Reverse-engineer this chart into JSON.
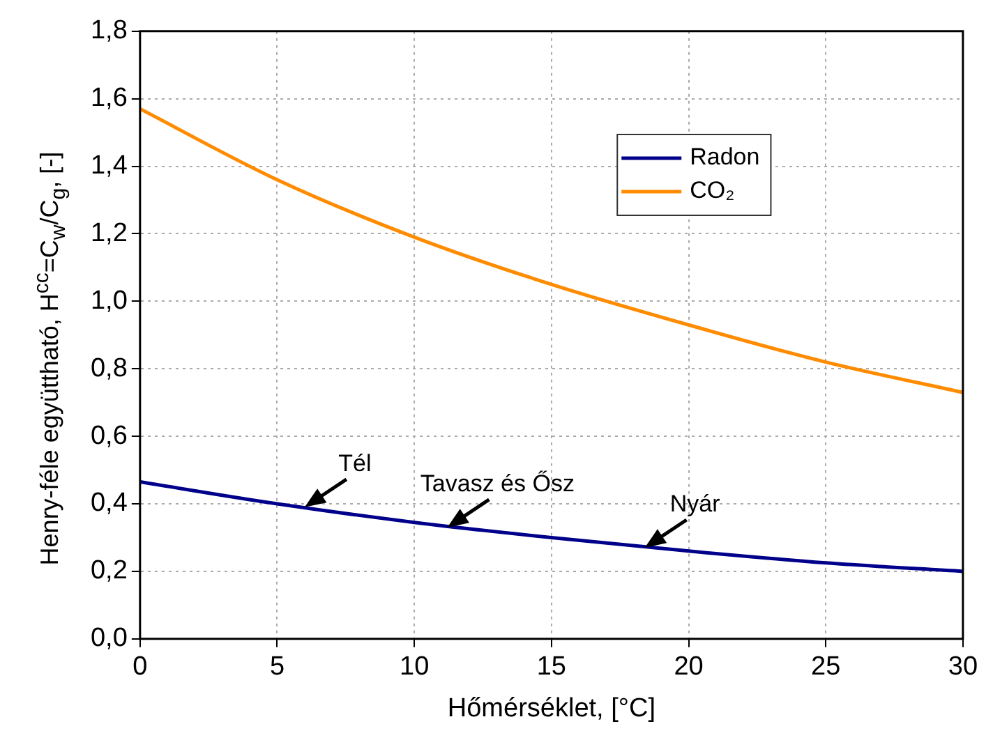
{
  "chart_data": {
    "type": "line",
    "xlabel": "Hőmérséklet, [°C]",
    "ylabel": "Henry-féle együttható, H$^{cc}$=C$_{w}$/C$_{g}$, [-]",
    "x": [
      0,
      5,
      10,
      15,
      20,
      25,
      30
    ],
    "series": [
      {
        "name": "Radon",
        "color": "#00008b",
        "values": [
          0.465,
          0.4,
          0.345,
          0.3,
          0.26,
          0.225,
          0.2
        ]
      },
      {
        "name": "CO₂",
        "color": "#ff8c00",
        "values": [
          1.57,
          1.36,
          1.19,
          1.05,
          0.93,
          0.82,
          0.73
        ]
      }
    ],
    "xlim": [
      0,
      30
    ],
    "xticks": [
      0,
      5,
      10,
      15,
      20,
      25,
      30
    ],
    "ylim": [
      0,
      1.8
    ],
    "yticks": [
      {
        "value": 0,
        "label": "0,0"
      },
      {
        "value": 0.2,
        "label": "0,2"
      },
      {
        "value": 0.4,
        "label": "0,4"
      },
      {
        "value": 0.6,
        "label": "0,6"
      },
      {
        "value": 0.8,
        "label": "0,8"
      },
      {
        "value": 1.0,
        "label": "1,0"
      },
      {
        "value": 1.2,
        "label": "1,2"
      },
      {
        "value": 1.4,
        "label": "1,4"
      },
      {
        "value": 1.6,
        "label": "1,6"
      },
      {
        "value": 1.8,
        "label": "1,8"
      }
    ],
    "annotations": [
      {
        "text": "Tél",
        "x": 6,
        "y": 0.39
      },
      {
        "text": "Tavasz és Ősz",
        "x": 11.2,
        "y": 0.33
      },
      {
        "text": "Nyár",
        "x": 18.4,
        "y": 0.27
      }
    ],
    "grid": true,
    "legend": "top right",
    "marker": "none",
    "line_style": "solid"
  }
}
